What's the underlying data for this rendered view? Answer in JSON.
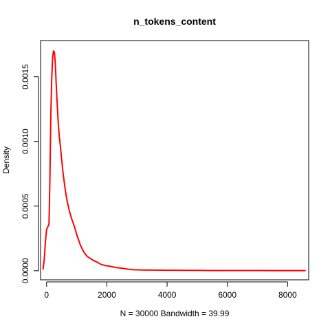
{
  "chart_data": {
    "type": "line",
    "title": "n_tokens_content",
    "xlabel": "N = 30000   Bandwidth = 39.99",
    "ylabel": "Density",
    "xlim": [
      -200,
      8700
    ],
    "ylim": [
      -7e-05,
      0.00178
    ],
    "x_ticks": [
      0,
      2000,
      4000,
      6000,
      8000
    ],
    "x_tick_labels": [
      "0",
      "2000",
      "4000",
      "6000",
      "8000"
    ],
    "y_ticks": [
      0.0,
      0.0005,
      0.001,
      0.0015
    ],
    "y_tick_labels": [
      "0.0000",
      "0.0005",
      "0.0010",
      "0.0015"
    ],
    "grid": false,
    "series": [
      {
        "color": "#ff0000",
        "x": [
          -120,
          -80,
          -40,
          0,
          40,
          80,
          110,
          140,
          170,
          200,
          230,
          260,
          290,
          320,
          350,
          380,
          420,
          460,
          500,
          550,
          600,
          650,
          700,
          760,
          820,
          880,
          940,
          1000,
          1060,
          1120,
          1180,
          1250,
          1350,
          1450,
          1550,
          1650,
          1800,
          1950,
          2100,
          2300,
          2500,
          2700,
          2900,
          3200,
          3600,
          4000,
          4500,
          5000,
          5500,
          6000,
          6500,
          7000,
          7500,
          8000,
          8600
        ],
        "y": [
          1e-05,
          8e-05,
          0.00022,
          0.00032,
          0.00034,
          0.00036,
          0.0007,
          0.0012,
          0.00148,
          0.00165,
          0.0017,
          0.00169,
          0.0016,
          0.00144,
          0.0013,
          0.00117,
          0.00104,
          0.00096,
          0.00086,
          0.00075,
          0.00066,
          0.00058,
          0.00052,
          0.00046,
          0.00041,
          0.00037,
          0.00033,
          0.00028,
          0.00024,
          0.0002,
          0.00017,
          0.00014,
          0.00011,
          9.5e-05,
          8e-05,
          7e-05,
          5e-05,
          4e-05,
          3.5e-05,
          2.5e-05,
          2e-05,
          1.2e-05,
          8e-06,
          6e-06,
          5e-06,
          4e-06,
          3e-06,
          3e-06,
          2e-06,
          2e-06,
          2e-06,
          2e-06,
          1e-06,
          1e-06,
          1e-06
        ]
      }
    ]
  }
}
